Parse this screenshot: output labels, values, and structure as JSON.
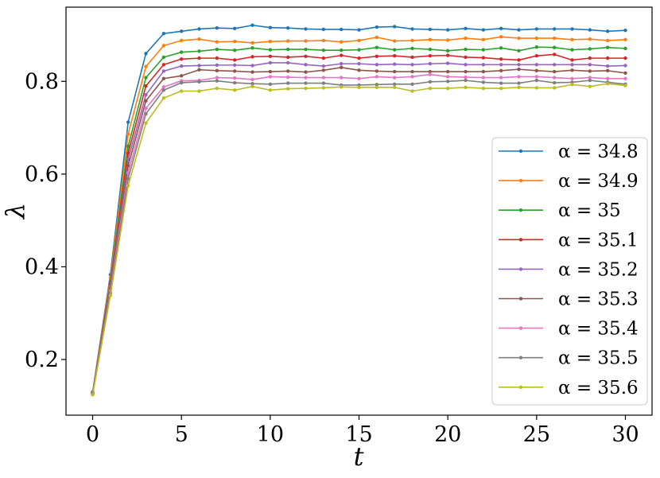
{
  "chart_data": {
    "type": "line",
    "title": "",
    "xlabel": "t",
    "ylabel": "λ",
    "xlim": [
      -1.5,
      31.5
    ],
    "ylim": [
      0.08,
      0.96
    ],
    "xticks": [
      0,
      5,
      10,
      15,
      20,
      25,
      30
    ],
    "xtick_labels": [
      "0",
      "5",
      "10",
      "15",
      "20",
      "25",
      "30"
    ],
    "yticks": [
      0.2,
      0.4,
      0.6,
      0.8
    ],
    "ytick_labels": [
      "0.2",
      "0.4",
      "0.6",
      "0.8"
    ],
    "grid": false,
    "legend_position": "right",
    "x": [
      0,
      1,
      2,
      3,
      4,
      5,
      6,
      7,
      8,
      9,
      10,
      11,
      12,
      13,
      14,
      15,
      16,
      17,
      18,
      19,
      20,
      21,
      22,
      23,
      24,
      25,
      26,
      27,
      28,
      29,
      30
    ],
    "series": [
      {
        "name": "α = 34.8",
        "color": "#1f77b4",
        "values": [
          0.13,
          0.383,
          0.712,
          0.86,
          0.903,
          0.908,
          0.913,
          0.915,
          0.914,
          0.921,
          0.916,
          0.915,
          0.913,
          0.912,
          0.912,
          0.911,
          0.917,
          0.918,
          0.913,
          0.912,
          0.911,
          0.914,
          0.911,
          0.914,
          0.911,
          0.913,
          0.913,
          0.913,
          0.911,
          0.908,
          0.91
        ]
      },
      {
        "name": "α = 34.9",
        "color": "#ff7f0e",
        "values": [
          0.128,
          0.376,
          0.686,
          0.832,
          0.877,
          0.888,
          0.891,
          0.885,
          0.886,
          0.883,
          0.886,
          0.887,
          0.887,
          0.888,
          0.885,
          0.888,
          0.895,
          0.887,
          0.888,
          0.89,
          0.889,
          0.893,
          0.89,
          0.896,
          0.893,
          0.893,
          0.893,
          0.89,
          0.891,
          0.888,
          0.89
        ]
      },
      {
        "name": "α = 35",
        "color": "#2ca02c",
        "values": [
          0.127,
          0.368,
          0.66,
          0.808,
          0.852,
          0.863,
          0.865,
          0.869,
          0.867,
          0.872,
          0.868,
          0.869,
          0.869,
          0.867,
          0.867,
          0.868,
          0.873,
          0.868,
          0.871,
          0.869,
          0.866,
          0.869,
          0.868,
          0.872,
          0.866,
          0.874,
          0.873,
          0.868,
          0.87,
          0.873,
          0.871
        ]
      },
      {
        "name": "α = 35.1",
        "color": "#d62728",
        "values": [
          0.127,
          0.363,
          0.645,
          0.79,
          0.836,
          0.848,
          0.85,
          0.85,
          0.846,
          0.853,
          0.854,
          0.852,
          0.854,
          0.85,
          0.856,
          0.85,
          0.854,
          0.855,
          0.852,
          0.855,
          0.856,
          0.852,
          0.851,
          0.848,
          0.846,
          0.855,
          0.858,
          0.846,
          0.85,
          0.85,
          0.85
        ]
      },
      {
        "name": "α = 35.2",
        "color": "#9467bd",
        "values": [
          0.126,
          0.358,
          0.632,
          0.771,
          0.822,
          0.833,
          0.834,
          0.835,
          0.835,
          0.834,
          0.84,
          0.84,
          0.836,
          0.833,
          0.838,
          0.838,
          0.836,
          0.837,
          0.836,
          0.838,
          0.839,
          0.836,
          0.836,
          0.836,
          0.836,
          0.836,
          0.836,
          0.836,
          0.836,
          0.833,
          0.834
        ]
      },
      {
        "name": "α = 35.3",
        "color": "#8c564b",
        "values": [
          0.126,
          0.353,
          0.618,
          0.758,
          0.806,
          0.812,
          0.825,
          0.823,
          0.822,
          0.82,
          0.821,
          0.822,
          0.82,
          0.824,
          0.83,
          0.824,
          0.822,
          0.821,
          0.821,
          0.821,
          0.821,
          0.821,
          0.821,
          0.823,
          0.826,
          0.823,
          0.821,
          0.824,
          0.822,
          0.823,
          0.818
        ]
      },
      {
        "name": "α = 35.4",
        "color": "#e377c2",
        "values": [
          0.125,
          0.348,
          0.603,
          0.742,
          0.788,
          0.801,
          0.802,
          0.808,
          0.807,
          0.804,
          0.81,
          0.809,
          0.808,
          0.808,
          0.808,
          0.806,
          0.81,
          0.808,
          0.81,
          0.815,
          0.81,
          0.809,
          0.808,
          0.808,
          0.81,
          0.81,
          0.808,
          0.806,
          0.808,
          0.806,
          0.806
        ]
      },
      {
        "name": "α = 35.5",
        "color": "#7f7f7f",
        "values": [
          0.125,
          0.343,
          0.59,
          0.73,
          0.781,
          0.797,
          0.799,
          0.801,
          0.797,
          0.795,
          0.794,
          0.796,
          0.796,
          0.796,
          0.792,
          0.792,
          0.793,
          0.794,
          0.794,
          0.799,
          0.8,
          0.802,
          0.798,
          0.796,
          0.796,
          0.802,
          0.797,
          0.798,
          0.802,
          0.798,
          0.794
        ]
      },
      {
        "name": "α = 35.6",
        "color": "#bcbd22",
        "values": [
          0.124,
          0.338,
          0.575,
          0.71,
          0.764,
          0.779,
          0.779,
          0.785,
          0.781,
          0.789,
          0.781,
          0.784,
          0.785,
          0.786,
          0.788,
          0.787,
          0.787,
          0.787,
          0.779,
          0.785,
          0.785,
          0.787,
          0.785,
          0.785,
          0.787,
          0.786,
          0.786,
          0.793,
          0.789,
          0.795,
          0.791
        ]
      }
    ]
  }
}
